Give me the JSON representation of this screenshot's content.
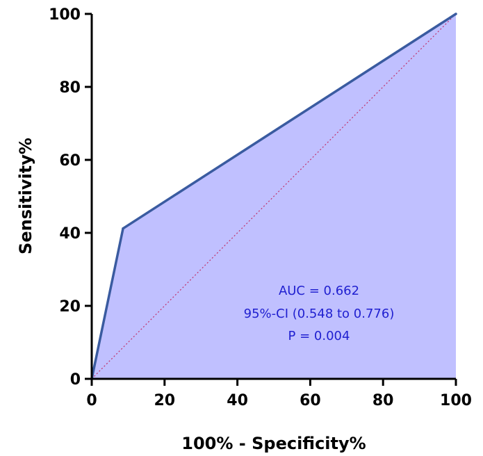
{
  "chart_data": {
    "type": "line",
    "title": "",
    "xlabel": "100% - Specificity%",
    "ylabel": "Sensitivity%",
    "xlim": [
      0,
      100
    ],
    "ylim": [
      0,
      100
    ],
    "x_ticks": [
      "0",
      "20",
      "40",
      "60",
      "80",
      "100"
    ],
    "y_ticks": [
      "0",
      "20",
      "40",
      "60",
      "80",
      "100"
    ],
    "grid": false,
    "series": [
      {
        "x": [
          0,
          8.6,
          100
        ],
        "y": [
          0,
          41.2,
          100
        ],
        "color": "#3a5ba0",
        "fill": "#c0c0ff"
      },
      {
        "x": [
          0,
          100
        ],
        "y": [
          0,
          100
        ],
        "color": "#c0306a",
        "style": "dotted"
      }
    ],
    "annotations": [
      "AUC = 0.662",
      "95%-CI (0.548 to 0.776)",
      "P = 0.004"
    ],
    "annotation_color": "#2020d0"
  }
}
